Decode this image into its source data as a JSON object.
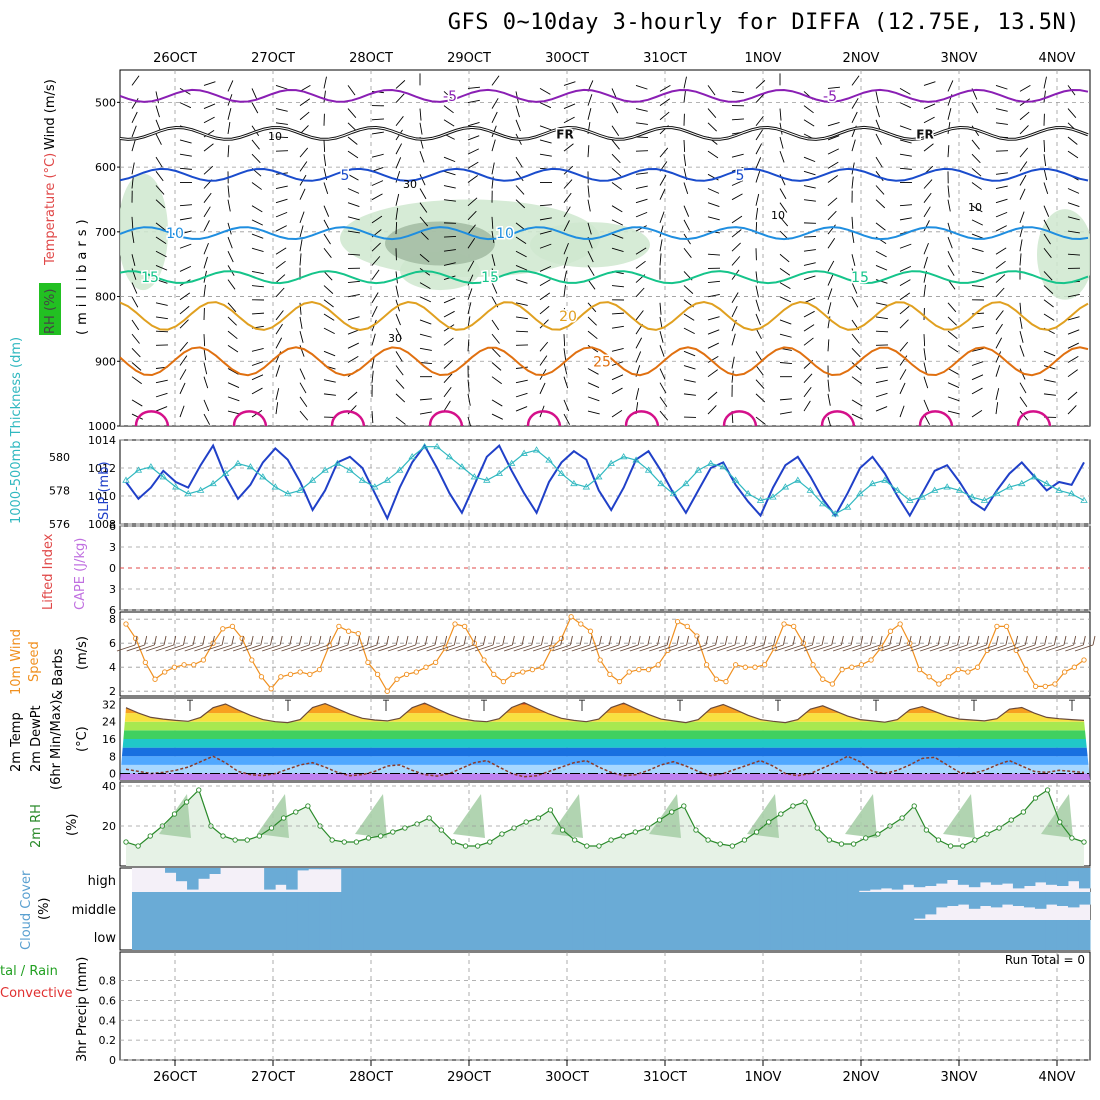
{
  "title": "GFS 0~10day 3-hourly for DIFFA (12.75E, 13.5N)",
  "colors": {
    "wind_barb": "#000000",
    "isotherm_minus5": "#8a1fb4",
    "isotherm_freezing": "#111111",
    "isotherm_5": "#1a4ccc",
    "isotherm_10": "#1f8ee0",
    "isotherm_15": "#15c48a",
    "isotherm_20": "#e0a020",
    "isotherm_25": "#e07010",
    "isotherm_30": "#d4108a",
    "rh_fill": "#cfe7cf",
    "slp": "#2040c8",
    "thickness": "#30b8c0",
    "wind10": "#f09020",
    "rh2m": "#2a8a2a",
    "cloud": "#6aabd6",
    "cloud_clear": "#f4f0f8"
  },
  "chart_data": [
    {
      "type": "line",
      "panel": "upper-air",
      "ylabel_parts": [
        "Temperature (°C)",
        "Wind (m/s)"
      ],
      "side_label": "(millibars)",
      "rh_legend": "RH (%)",
      "y_axis_reversed": true,
      "ylim": [
        1000,
        450
      ],
      "yticks": [
        500,
        600,
        700,
        800,
        900,
        1000
      ],
      "x_tick_labels": [
        "26OCT",
        "27OCT",
        "28OCT",
        "29OCT",
        "30OCT",
        "31OCT",
        "1NOV",
        "2NOV",
        "3NOV",
        "4NOV"
      ],
      "isotherms": [
        {
          "name": "-5",
          "pressure_mb": 490
        },
        {
          "name": "FR",
          "pressure_mb": 548
        },
        {
          "name": "5",
          "pressure_mb": 612
        },
        {
          "name": "10",
          "pressure_mb": 702
        },
        {
          "name": "15",
          "pressure_mb": 770
        },
        {
          "name": "20",
          "pressure_mb": 830
        },
        {
          "name": "25",
          "pressure_mb": 900
        }
      ],
      "rh_contour_labels": [
        "10",
        "30",
        "30",
        "10",
        "10"
      ]
    },
    {
      "type": "line",
      "panel": "pressure",
      "ylabel_left": "1000-500mb Thickness (dm)",
      "ylabel_right": "SLP (mb)",
      "left_ticks": [
        576,
        578,
        580
      ],
      "right_ticks": [
        1008,
        1010,
        1012,
        1014
      ],
      "series": [
        {
          "name": "SLP",
          "values": [
            1011.0,
            1009.8,
            1010.6,
            1011.8,
            1011.0,
            1010.6,
            1012.2,
            1013.6,
            1011.4,
            1009.8,
            1010.8,
            1012.4,
            1013.4,
            1012.6,
            1011.0,
            1009.0,
            1010.4,
            1012.4,
            1012.8,
            1012.0,
            1010.2,
            1008.4,
            1010.6,
            1012.4,
            1013.6,
            1012.0,
            1010.2,
            1008.8,
            1010.8,
            1012.8,
            1013.6,
            1011.8,
            1010.2,
            1008.8,
            1011.0,
            1012.4,
            1013.2,
            1012.6,
            1010.4,
            1009.0,
            1010.6,
            1012.6,
            1013.2,
            1011.8,
            1010.2,
            1008.8,
            1010.4,
            1012.0,
            1012.4,
            1010.8,
            1009.6,
            1008.6,
            1010.6,
            1012.2,
            1012.8,
            1011.4,
            1009.8,
            1008.6,
            1010.2,
            1012.0,
            1012.8,
            1011.6,
            1010.0,
            1008.6,
            1010.2,
            1011.8,
            1012.2,
            1011.0,
            1009.6,
            1009.0,
            1010.4,
            1011.6,
            1012.4,
            1011.4,
            1010.4,
            1011.0,
            1010.8,
            1012.4
          ]
        },
        {
          "name": "Thickness",
          "values": [
            578.6,
            579.2,
            579.4,
            578.8,
            578.2,
            577.8,
            578.0,
            578.4,
            579.0,
            579.6,
            579.4,
            578.8,
            578.2,
            577.8,
            578.0,
            578.6,
            579.2,
            579.6,
            579.2,
            578.6,
            578.2,
            578.6,
            579.2,
            580.0,
            580.6,
            580.6,
            580.0,
            579.4,
            578.8,
            578.6,
            579.0,
            579.6,
            580.2,
            580.4,
            579.8,
            579.0,
            578.4,
            578.2,
            578.8,
            579.6,
            580.0,
            579.8,
            579.2,
            578.4,
            577.8,
            578.4,
            579.2,
            579.6,
            579.4,
            578.6,
            577.8,
            577.4,
            577.6,
            578.2,
            578.6,
            578.0,
            577.2,
            576.6,
            577.0,
            577.8,
            578.4,
            578.6,
            578.0,
            577.4,
            577.6,
            578.0,
            578.2,
            578.0,
            577.6,
            577.4,
            577.8,
            578.2,
            578.4,
            578.8,
            578.4,
            578.0,
            577.8,
            577.4
          ]
        }
      ]
    },
    {
      "type": "line",
      "panel": "stability",
      "ylabel_left": "Lifted Index",
      "ylabel_right": "CAPE (J/kg)",
      "left_ticks": [
        "6",
        "3",
        "0",
        "3",
        "6"
      ],
      "values_lifted_index": [],
      "values_cape": []
    },
    {
      "type": "line",
      "panel": "wind10m",
      "ylabel": "10m Wind Speed (m/s) & Barbs",
      "yticks": [
        2,
        4,
        6,
        8
      ],
      "series": [
        {
          "name": "10m Wind Speed",
          "values": [
            7.6,
            6.4,
            4.4,
            3.0,
            3.6,
            4.0,
            4.2,
            4.2,
            4.6,
            6.0,
            7.2,
            7.4,
            6.4,
            4.6,
            3.2,
            2.2,
            3.2,
            3.4,
            3.6,
            3.4,
            3.8,
            5.8,
            7.4,
            7.0,
            6.8,
            4.4,
            3.4,
            2.0,
            3.0,
            3.4,
            3.6,
            4.0,
            4.4,
            5.6,
            7.6,
            7.4,
            6.0,
            4.6,
            3.4,
            2.8,
            3.4,
            3.6,
            3.8,
            4.0,
            5.6,
            6.4,
            8.2,
            7.6,
            7.0,
            4.6,
            3.4,
            2.8,
            3.6,
            3.8,
            3.8,
            4.2,
            5.4,
            7.8,
            7.4,
            6.6,
            4.2,
            3.0,
            2.8,
            4.2,
            4.0,
            4.0,
            4.2,
            5.6,
            7.6,
            7.4,
            6.0,
            4.2,
            3.0,
            2.6,
            3.8,
            4.0,
            4.2,
            4.6,
            5.6,
            7.0,
            7.6,
            6.0,
            3.8,
            3.2,
            2.6,
            3.2,
            3.8,
            3.6,
            4.0,
            5.4,
            7.4,
            7.4,
            5.4,
            3.8,
            2.4,
            2.4,
            2.6,
            3.6,
            4.0,
            4.6
          ]
        }
      ]
    },
    {
      "type": "area",
      "panel": "temperature",
      "ylabel_parts": [
        "2m Temp",
        "2m DewPt",
        "(6hr Min/Max)"
      ],
      "unit": "(°C)",
      "yticks": [
        0,
        8,
        16,
        24,
        32
      ],
      "series": [
        {
          "name": "2m Temp",
          "values": [
            30.5,
            28.0,
            26.0,
            25.2,
            24.6,
            24.2,
            26.0,
            30.5,
            32.2,
            29.5,
            27.0,
            25.0,
            24.0,
            23.6,
            25.0,
            30.6,
            32.4,
            30.0,
            27.5,
            25.6,
            24.8,
            24.4,
            25.6,
            30.5,
            32.6,
            30.0,
            27.4,
            25.4,
            24.4,
            24.0,
            25.4,
            30.6,
            32.8,
            30.2,
            27.6,
            25.6,
            24.6,
            24.0,
            25.2,
            30.6,
            32.6,
            30.0,
            27.4,
            25.2,
            24.4,
            23.6,
            25.0,
            30.2,
            32.0,
            29.6,
            27.0,
            25.0,
            24.2,
            23.6,
            25.0,
            29.8,
            31.4,
            29.0,
            26.6,
            25.0,
            24.4,
            23.8,
            25.0,
            29.6,
            31.0,
            28.8,
            26.6,
            25.2,
            24.8,
            24.4,
            25.4,
            29.8,
            30.6,
            28.0,
            26.0,
            25.4,
            25.0,
            24.6
          ]
        },
        {
          "name": "2m DewPt",
          "values": [
            2.0,
            1.0,
            0.0,
            0.5,
            1.5,
            3.0,
            5.5,
            8.0,
            5.0,
            1.0,
            -0.5,
            -1.0,
            0.0,
            2.0,
            4.0,
            5.0,
            3.0,
            0.5,
            -1.0,
            -0.5,
            1.0,
            3.5,
            4.0,
            1.5,
            -0.5,
            -1.2,
            0.0,
            2.5,
            5.0,
            6.0,
            3.0,
            0.0,
            -1.5,
            -1.0,
            1.0,
            3.0,
            5.0,
            6.0,
            3.0,
            0.5,
            -1.0,
            -0.5,
            1.5,
            4.0,
            5.5,
            3.5,
            1.0,
            -1.0,
            0.0,
            2.0,
            4.0,
            6.0,
            3.5,
            0.0,
            -1.0,
            0.0,
            2.5,
            5.0,
            8.0,
            5.5,
            1.0,
            0.0,
            1.5,
            4.0,
            7.0,
            7.5,
            4.0,
            0.5,
            0.0,
            1.5,
            4.0,
            6.0,
            3.5,
            1.0,
            0.5,
            1.5,
            1.0,
            0.5
          ]
        }
      ]
    },
    {
      "type": "area",
      "panel": "rh2m",
      "ylabel": "2m RH",
      "unit": "(%)",
      "yticks": [
        20,
        40
      ],
      "series": [
        {
          "name": "2m RH",
          "values": [
            12,
            10,
            15,
            20,
            26,
            32,
            38,
            20,
            15,
            13,
            13,
            15,
            19,
            24,
            27,
            30,
            20,
            13,
            12,
            12,
            14,
            15,
            17,
            19,
            21,
            24,
            18,
            12,
            10,
            10,
            12,
            16,
            19,
            22,
            24,
            28,
            18,
            13,
            10,
            10,
            13,
            15,
            17,
            19,
            23,
            27,
            30,
            18,
            13,
            11,
            10,
            13,
            17,
            22,
            26,
            30,
            32,
            19,
            13,
            11,
            11,
            14,
            16,
            20,
            24,
            30,
            18,
            13,
            10,
            10,
            13,
            16,
            19,
            23,
            27,
            34,
            38,
            22,
            14,
            12
          ]
        }
      ]
    },
    {
      "type": "heatmap",
      "panel": "cloud",
      "ylabel": "Cloud Cover",
      "unit": "(%)",
      "rows": [
        "high",
        "middle",
        "low"
      ],
      "high_fraction": [
        0,
        0,
        0,
        0.2,
        0.55,
        0.9,
        0.45,
        0.25,
        0,
        0,
        0,
        0,
        0.9,
        0.7,
        0.9,
        0.1,
        0.05,
        0.05,
        0.05,
        1,
        1,
        1,
        1,
        1,
        1,
        1,
        1,
        1,
        1,
        1,
        1,
        1,
        1,
        1,
        1,
        1,
        1,
        1,
        1,
        1,
        1,
        1,
        1,
        1,
        1,
        1,
        1,
        1,
        1,
        1,
        1,
        1,
        1,
        1,
        1,
        1,
        1,
        1,
        1,
        1,
        1,
        1,
        1,
        1,
        1,
        1,
        0.95,
        0.9,
        0.85,
        0.9,
        0.7,
        0.8,
        0.75,
        0.65,
        0.5,
        0.7,
        0.8,
        0.6,
        0.7,
        0.65,
        0.85,
        0.75,
        0.6,
        0.7,
        0.75,
        0.55,
        0.85
      ],
      "middle_fraction": [
        1,
        1,
        1,
        1,
        1,
        1,
        1,
        1,
        1,
        1,
        1,
        1,
        1,
        1,
        1,
        1,
        1,
        1,
        1,
        1,
        1,
        1,
        1,
        1,
        1,
        1,
        1,
        1,
        1,
        1,
        1,
        1,
        1,
        1,
        1,
        1,
        1,
        1,
        1,
        1,
        1,
        1,
        1,
        1,
        1,
        1,
        1,
        1,
        1,
        1,
        1,
        1,
        1,
        1,
        1,
        1,
        1,
        1,
        1,
        1,
        1,
        1,
        1,
        1,
        1,
        1,
        1,
        1,
        1,
        1,
        1,
        0.95,
        0.8,
        0.55,
        0.5,
        0.45,
        0.6,
        0.5,
        0.55,
        0.45,
        0.5,
        0.55,
        0.6,
        0.45,
        0.5,
        0.55,
        0.45
      ],
      "low_fraction": [
        1,
        1,
        1,
        1,
        1,
        1,
        1,
        1,
        1,
        1,
        1,
        1,
        1,
        1,
        1,
        1,
        1,
        1,
        1,
        1,
        1,
        1,
        1,
        1,
        1,
        1,
        1,
        1,
        1,
        1,
        1,
        1,
        1,
        1,
        1,
        1,
        1,
        1,
        1,
        1,
        1,
        1,
        1,
        1,
        1,
        1,
        1,
        1,
        1,
        1,
        1,
        1,
        1,
        1,
        1,
        1,
        1,
        1,
        1,
        1,
        1,
        1,
        1,
        1,
        1,
        1,
        1,
        1,
        1,
        1,
        1,
        1,
        1,
        1,
        1,
        1,
        1,
        1,
        1,
        1,
        1,
        1,
        1,
        1,
        1,
        1,
        1
      ]
    },
    {
      "type": "bar",
      "panel": "precip",
      "ylabel": "3hr Precip (mm)",
      "legend_left": [
        "tal / Rain",
        "Convective"
      ],
      "annotation": "Run Total = 0",
      "yticks": [
        0,
        0.2,
        0.4,
        0.6,
        0.8
      ],
      "ylim": [
        0,
        1
      ],
      "values": []
    }
  ]
}
